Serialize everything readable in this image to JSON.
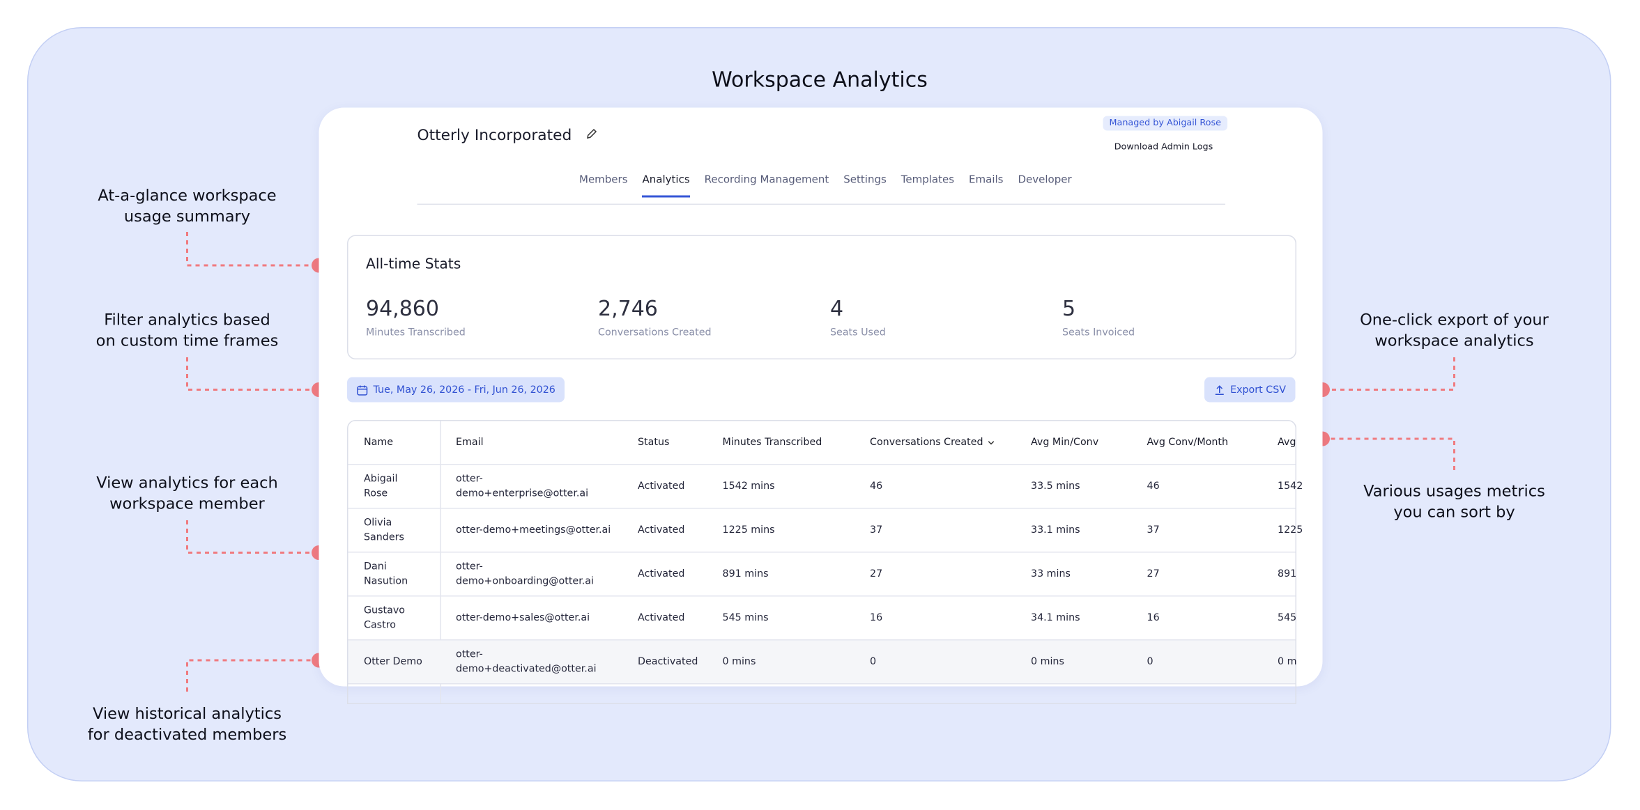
{
  "title": "Workspace Analytics",
  "workspace": {
    "name": "Otterly Incorporated",
    "managed_by": "Managed by Abigail Rose",
    "download_logs": "Download Admin Logs"
  },
  "tabs": [
    "Members",
    "Analytics",
    "Recording Management",
    "Settings",
    "Templates",
    "Emails",
    "Developer"
  ],
  "stats": {
    "title": "All-time Stats",
    "items": [
      {
        "value": "94,860",
        "label": "Minutes Transcribed"
      },
      {
        "value": "2,746",
        "label": "Conversations Created"
      },
      {
        "value": "4",
        "label": "Seats Used"
      },
      {
        "value": "5",
        "label": "Seats Invoiced"
      }
    ]
  },
  "date_range": "Tue, May 26, 2026 - Fri, Jun 26, 2026",
  "export": "Export CSV",
  "table": {
    "headers": [
      "Name",
      "Email",
      "Status",
      "Minutes Transcribed",
      "Conversations Created",
      "Avg Min/Conv",
      "Avg Conv/Month",
      "Avg"
    ],
    "rows": [
      [
        "Abigail Rose",
        "otter-demo+enterprise@otter.ai",
        "Activated",
        "1542 mins",
        "46",
        "33.5 mins",
        "46",
        "1542"
      ],
      [
        "Olivia Sanders",
        "otter-demo+meetings@otter.ai",
        "Activated",
        "1225 mins",
        "37",
        "33.1 mins",
        "37",
        "1225"
      ],
      [
        "Dani Nasution",
        "otter-demo+onboarding@otter.ai",
        "Activated",
        "891 mins",
        "27",
        "33 mins",
        "27",
        "891"
      ],
      [
        "Gustavo Castro",
        "otter-demo+sales@otter.ai",
        "Activated",
        "545 mins",
        "16",
        "34.1 mins",
        "16",
        "545"
      ],
      [
        "Otter Demo",
        "otter-demo+deactivated@otter.ai",
        "Deactivated",
        "0 mins",
        "0",
        "0 mins",
        "0",
        "0 m"
      ]
    ]
  },
  "annotations": [
    {
      "lines": [
        "At-a-glance workspace",
        "usage summary"
      ]
    },
    {
      "lines": [
        "Filter analytics based",
        "on custom time frames"
      ]
    },
    {
      "lines": [
        "View analytics for each",
        "workspace member"
      ]
    },
    {
      "lines": [
        "View historical analytics",
        "for deactivated members"
      ]
    },
    {
      "lines": [
        "One-click export of your",
        "workspace analytics"
      ]
    },
    {
      "lines": [
        "Various usages metrics",
        "you can sort by"
      ]
    }
  ]
}
